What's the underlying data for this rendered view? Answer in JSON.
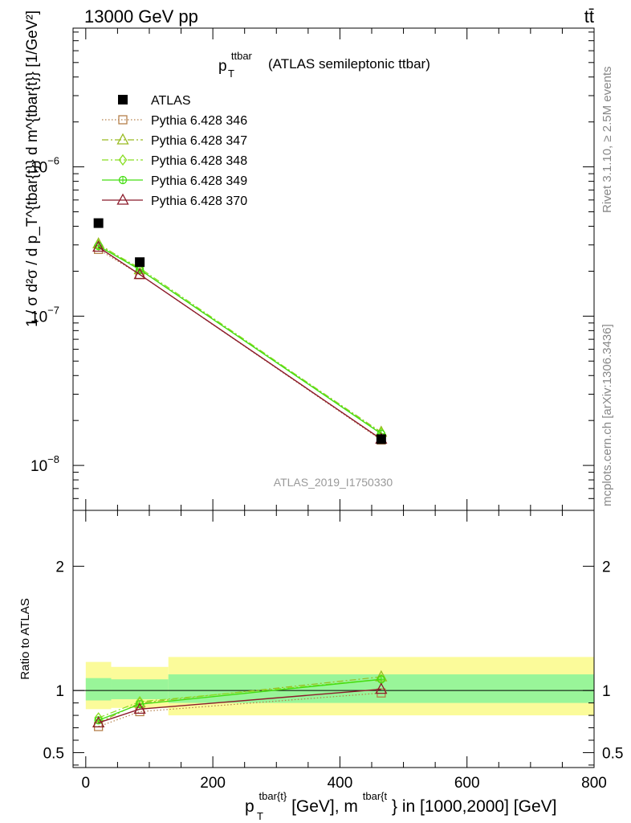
{
  "header": {
    "energy_label": "13000 GeV pp",
    "process_label": "tt̄"
  },
  "side_labels": {
    "rivet": "Rivet 3.1.10, ≥ 2.5M events",
    "mcplots": "mcplots.cern.ch [arXiv:1306.3436]"
  },
  "chart_data": [
    {
      "type": "scatter",
      "panel": "main",
      "title": "(ATLAS semileptonic ttbar)",
      "title_var": {
        "base": "p",
        "sub": "T",
        "sup": "ttbar"
      },
      "ylabel": "1 / σ d²σ / d p_T^{tbar{t}} d m^{tbar{t}} [1/GeV²]",
      "watermark": "ATLAS_2019_I1750330",
      "y_scale": "log",
      "ylim": [
        5e-09,
        8.5e-06
      ],
      "xlim": [
        -20,
        800
      ],
      "y_ticks": [
        {
          "value": 1e-08,
          "base": "10",
          "exp": "−8"
        },
        {
          "value": 1e-07,
          "base": "10",
          "exp": "−7"
        },
        {
          "value": 1e-06,
          "base": "10",
          "exp": "−6"
        }
      ],
      "legend_position": "top-left",
      "series": [
        {
          "name": "ATLAS",
          "color": "#000000",
          "marker": "square-filled",
          "line": "none",
          "x": [
            20,
            85,
            465
          ],
          "y": [
            4.2e-07,
            2.3e-07,
            1.5e-08
          ]
        },
        {
          "name": "Pythia 6.428 346",
          "color": "#b5804b",
          "marker": "square-open",
          "line": "dotted",
          "x": [
            20,
            85,
            465
          ],
          "y": [
            2.8e-07,
            1.9e-07,
            1.48e-08
          ]
        },
        {
          "name": "Pythia 6.428 347",
          "color": "#99bb22",
          "marker": "triangle-open",
          "line": "dashdot",
          "x": [
            20,
            85,
            465
          ],
          "y": [
            3.05e-07,
            2.05e-07,
            1.67e-08
          ]
        },
        {
          "name": "Pythia 6.428 348",
          "color": "#88dd22",
          "marker": "diamond-open",
          "line": "dashdot",
          "x": [
            20,
            85,
            465
          ],
          "y": [
            3e-07,
            2.1e-07,
            1.65e-08
          ]
        },
        {
          "name": "Pythia 6.428 349",
          "color": "#44dd11",
          "marker": "circle-cross",
          "line": "solid",
          "x": [
            20,
            85,
            465
          ],
          "y": [
            2.95e-07,
            2.05e-07,
            1.63e-08
          ]
        },
        {
          "name": "Pythia 6.428 370",
          "color": "#8b1a2a",
          "marker": "triangle-open",
          "line": "solid",
          "x": [
            20,
            85,
            465
          ],
          "y": [
            2.9e-07,
            1.9e-07,
            1.5e-08
          ]
        }
      ]
    },
    {
      "type": "line",
      "panel": "ratio",
      "ylabel": "Ratio to ATLAS",
      "xlabel_parts": [
        "p",
        "T",
        "tbar{t}",
        "[GeV], m",
        "tbar{t",
        "} in [1000,2000] [GeV]"
      ],
      "ylim": [
        0.38,
        2.45
      ],
      "xlim": [
        -20,
        800
      ],
      "x_ticks": [
        0,
        200,
        400,
        600,
        800
      ],
      "y_ticks": [
        0.5,
        1,
        2
      ],
      "reference_line": 1,
      "bands": [
        {
          "x0": 0,
          "x1": 40,
          "inner": [
            0.92,
            1.1
          ],
          "outer": [
            0.85,
            1.23
          ]
        },
        {
          "x0": 40,
          "x1": 130,
          "inner": [
            0.93,
            1.09
          ],
          "outer": [
            0.86,
            1.19
          ]
        },
        {
          "x0": 130,
          "x1": 800,
          "inner": [
            0.9,
            1.13
          ],
          "outer": [
            0.8,
            1.27
          ]
        }
      ],
      "band_colors": {
        "inner": "#99f599",
        "outer": "#fbfb9a"
      },
      "series": [
        {
          "name": "Pythia 6.428 346",
          "x": [
            20,
            85,
            465
          ],
          "y": [
            0.71,
            0.83,
            0.98
          ]
        },
        {
          "name": "Pythia 6.428 347",
          "x": [
            20,
            85,
            465
          ],
          "y": [
            0.74,
            0.9,
            1.11
          ]
        },
        {
          "name": "Pythia 6.428 348",
          "x": [
            20,
            85,
            465
          ],
          "y": [
            0.78,
            0.91,
            1.09
          ]
        },
        {
          "name": "Pythia 6.428 349",
          "x": [
            20,
            85,
            465
          ],
          "y": [
            0.76,
            0.89,
            1.09
          ]
        },
        {
          "name": "Pythia 6.428 370",
          "x": [
            20,
            85,
            465
          ],
          "y": [
            0.74,
            0.85,
            1.01
          ]
        }
      ]
    }
  ]
}
